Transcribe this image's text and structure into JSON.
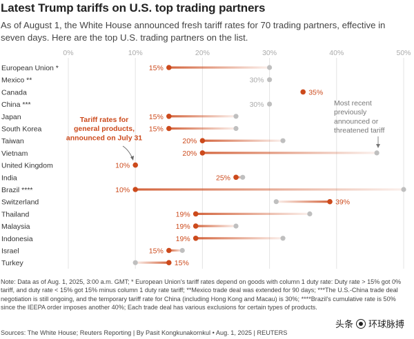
{
  "header": {
    "title": "Latest Trump tariffs on U.S. top trading partners",
    "subtitle": "As of August 1, the White House announced fresh tariff rates for 70 trading partners, effective in seven days. Here are the top U.S. trading partners on the list."
  },
  "colors": {
    "new_rate": "#cc4a1c",
    "previous_rate": "#bfbfbf",
    "gridline": "#e3e3e3"
  },
  "chart_data": {
    "type": "dumbbell",
    "title": "Latest Trump tariffs on U.S. top trading partners",
    "xlabel": "",
    "ylabel": "",
    "xlim": [
      0,
      51
    ],
    "x_ticks": [
      "0%",
      "10%",
      "20%",
      "30%",
      "40%",
      "50%"
    ],
    "x_tick_values": [
      0,
      10,
      20,
      30,
      40,
      50
    ],
    "grid": true,
    "series": [
      {
        "name": "Tariff rates for general products, announced on July 31"
      },
      {
        "name": "Most recent previously announced or threatened tariff"
      }
    ],
    "rows": [
      {
        "label": "European Union *",
        "new": 15,
        "new_label": "15%",
        "previous": 30
      },
      {
        "label": "Mexico **",
        "new": null,
        "new_label": "",
        "previous": 30,
        "previous_label": "30%"
      },
      {
        "label": "Canada",
        "new": 35,
        "new_label": "35%",
        "previous": null
      },
      {
        "label": "China ***",
        "new": null,
        "new_label": "",
        "previous": 30,
        "previous_label": "30%"
      },
      {
        "label": "Japan",
        "new": 15,
        "new_label": "15%",
        "previous": 25
      },
      {
        "label": "South Korea",
        "new": 15,
        "new_label": "15%",
        "previous": 25
      },
      {
        "label": "Taiwan",
        "new": 20,
        "new_label": "20%",
        "previous": 32
      },
      {
        "label": "Vietnam",
        "new": 20,
        "new_label": "20%",
        "previous": 46
      },
      {
        "label": "United Kingdom",
        "new": 10,
        "new_label": "10%",
        "previous": null
      },
      {
        "label": "India",
        "new": 25,
        "new_label": "25%",
        "previous": 26
      },
      {
        "label": "Brazil ****",
        "new": 10,
        "new_label": "10%",
        "previous": 50
      },
      {
        "label": "Switzerland",
        "new": 39,
        "new_label": "39%",
        "previous": 31
      },
      {
        "label": "Thailand",
        "new": 19,
        "new_label": "19%",
        "previous": 36
      },
      {
        "label": "Malaysia",
        "new": 19,
        "new_label": "19%",
        "previous": 25
      },
      {
        "label": "Indonesia",
        "new": 19,
        "new_label": "19%",
        "previous": 32
      },
      {
        "label": "Israel",
        "new": 15,
        "new_label": "15%",
        "previous": 17
      },
      {
        "label": "Turkey",
        "new": 15,
        "new_label": "15%",
        "previous": 10
      }
    ],
    "annotations": [
      {
        "text": "Tariff rates for general products, announced on July 31",
        "lines": [
          "Tariff rates for",
          "general products,",
          "announced on July 31"
        ]
      },
      {
        "text": "Most recent previously announced or threatened tariff",
        "lines": [
          "Most recent",
          "previously",
          "announced or",
          "threatened tariff"
        ]
      }
    ]
  },
  "footer": {
    "note": "Note: Data as of Aug. 1, 2025, 3:00 a.m. GMT; * European Union's tariff rates depend on goods with column 1 duty rate: Duty rate > 15% got 0% tariff, and duty rate < 15% got 15% minus column 1 duty rate tariff; **Mexico trade deal was extended for 90 days; ***The U.S.-China trade deal negotiation is still ongoing, and the temporary tariff rate for China (including Hong Kong and Macau) is 30%; ****Brazil's cumulative rate is 50% since the IEEPA order imposes another 40%; Each trade deal has various exclusions for certain types of products.",
    "source": "Sources: The White House; Reuters Reporting | By Pasit Kongkunakornkul • Aug. 1, 2025 | REUTERS"
  },
  "watermark": {
    "text_left": "头条",
    "text_right": "环球脉搏",
    "at": "@"
  }
}
